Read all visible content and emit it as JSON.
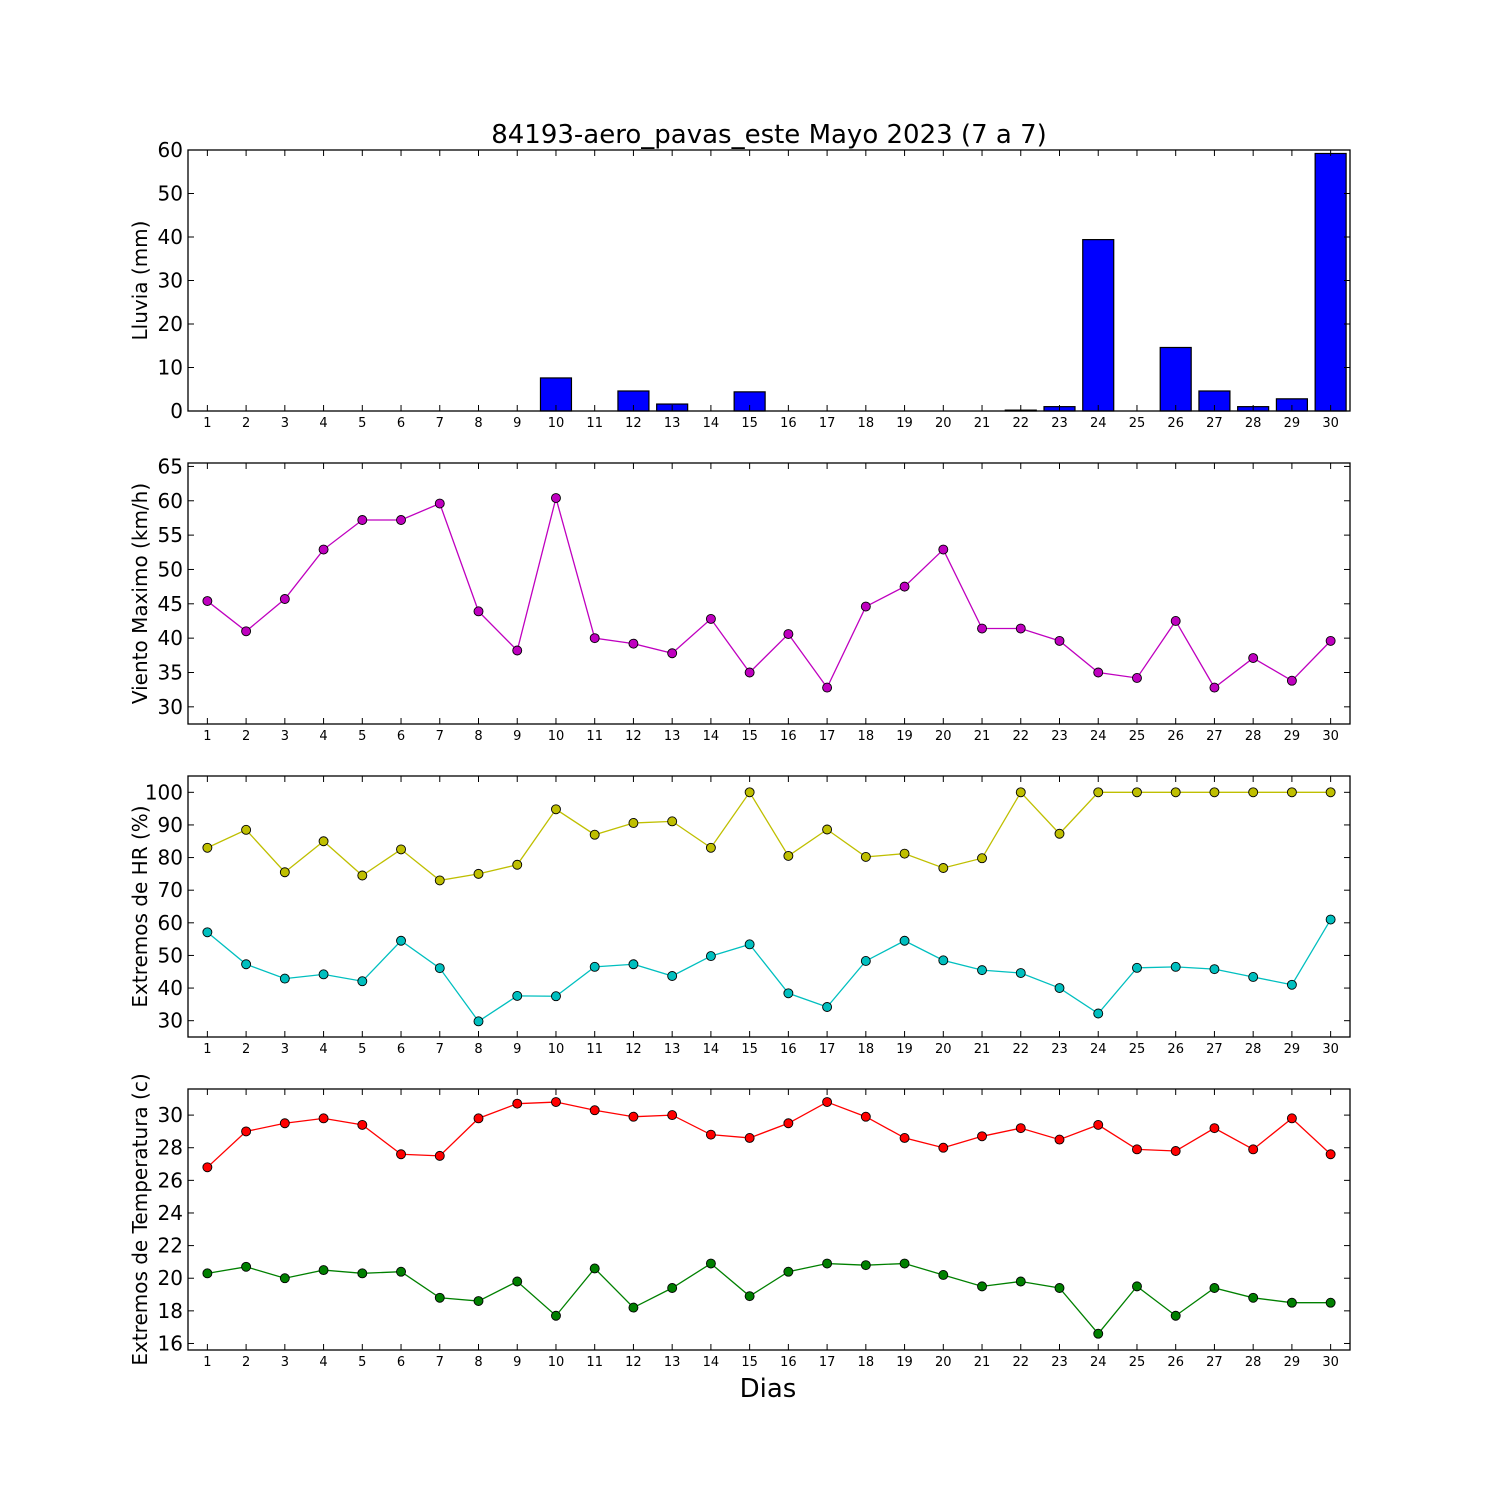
{
  "figure": {
    "title": "84193-aero_pavas_este Mayo 2023  (7 a 7)",
    "xlabel": "Dias"
  },
  "chart_data": [
    {
      "type": "bar",
      "ylabel": "Lluvia (mm)",
      "ylim": [
        0,
        60
      ],
      "yticks": [
        0,
        10,
        20,
        30,
        40,
        50,
        60
      ],
      "x": [
        1,
        2,
        3,
        4,
        5,
        6,
        7,
        8,
        9,
        10,
        11,
        12,
        13,
        14,
        15,
        16,
        17,
        18,
        19,
        20,
        21,
        22,
        23,
        24,
        25,
        26,
        27,
        28,
        29,
        30
      ],
      "series": [
        {
          "color": "#0000ff",
          "values": [
            0,
            0,
            0,
            0,
            0,
            0,
            0,
            0,
            0,
            7.6,
            0,
            4.6,
            1.6,
            0,
            4.4,
            0,
            0,
            0,
            0,
            0,
            0,
            0.2,
            1.0,
            39.4,
            0,
            14.6,
            4.6,
            1.0,
            2.8,
            59.2
          ]
        }
      ],
      "grid": false
    },
    {
      "type": "line",
      "ylabel": "Viento Maximo (km/h)",
      "ylim": [
        27.5,
        65.5
      ],
      "yticks": [
        30,
        35,
        40,
        45,
        50,
        55,
        60,
        65
      ],
      "x": [
        1,
        2,
        3,
        4,
        5,
        6,
        7,
        8,
        9,
        10,
        11,
        12,
        13,
        14,
        15,
        16,
        17,
        18,
        19,
        20,
        21,
        22,
        23,
        24,
        25,
        26,
        27,
        28,
        29,
        30
      ],
      "series": [
        {
          "color": "#bf00bf",
          "values": [
            45.4,
            41.0,
            45.7,
            52.9,
            57.2,
            57.2,
            59.6,
            43.9,
            38.2,
            60.4,
            40.0,
            39.2,
            37.8,
            42.8,
            35.0,
            40.6,
            32.8,
            44.6,
            47.5,
            52.9,
            41.4,
            41.4,
            39.6,
            35.0,
            34.2,
            42.5,
            32.8,
            37.1,
            33.8,
            39.6
          ]
        }
      ],
      "grid": false
    },
    {
      "type": "line",
      "ylabel": "Extremos de HR (%)",
      "ylim": [
        25,
        105
      ],
      "yticks": [
        30,
        40,
        50,
        60,
        70,
        80,
        90,
        100
      ],
      "x": [
        1,
        2,
        3,
        4,
        5,
        6,
        7,
        8,
        9,
        10,
        11,
        12,
        13,
        14,
        15,
        16,
        17,
        18,
        19,
        20,
        21,
        22,
        23,
        24,
        25,
        26,
        27,
        28,
        29,
        30
      ],
      "series": [
        {
          "color": "#bfbf00",
          "values": [
            83,
            88.5,
            75.5,
            85,
            74.5,
            82.5,
            73,
            75,
            77.8,
            94.8,
            87,
            90.6,
            91.1,
            83,
            100,
            80.5,
            88.6,
            80.2,
            81.2,
            76.8,
            79.8,
            100,
            87.3,
            100,
            100,
            100,
            100,
            100,
            100,
            100
          ]
        },
        {
          "color": "#00bfbf",
          "values": [
            57.1,
            47.3,
            42.9,
            44.2,
            42.1,
            54.5,
            46.1,
            29.8,
            37.6,
            37.5,
            46.5,
            47.3,
            43.7,
            49.8,
            53.4,
            38.4,
            34.2,
            48.3,
            54.5,
            48.5,
            45.5,
            44.6,
            40,
            32.2,
            46.2,
            46.5,
            45.8,
            43.4,
            41,
            61
          ]
        }
      ],
      "grid": false
    },
    {
      "type": "line",
      "ylabel": "Extremos de Temperatura (c)",
      "ylim": [
        15.6,
        31.6
      ],
      "yticks": [
        16,
        18,
        20,
        22,
        24,
        26,
        28,
        30
      ],
      "x": [
        1,
        2,
        3,
        4,
        5,
        6,
        7,
        8,
        9,
        10,
        11,
        12,
        13,
        14,
        15,
        16,
        17,
        18,
        19,
        20,
        21,
        22,
        23,
        24,
        25,
        26,
        27,
        28,
        29,
        30
      ],
      "series": [
        {
          "color": "#ff0000",
          "values": [
            26.8,
            29.0,
            29.5,
            29.8,
            29.4,
            27.6,
            27.5,
            29.8,
            30.7,
            30.8,
            30.3,
            29.9,
            30.0,
            28.8,
            28.6,
            29.5,
            30.8,
            29.9,
            28.6,
            28.0,
            28.7,
            29.2,
            28.5,
            29.4,
            27.9,
            27.8,
            29.2,
            27.9,
            29.8,
            27.6
          ]
        },
        {
          "color": "#008000",
          "values": [
            20.3,
            20.7,
            20.0,
            20.5,
            20.3,
            20.4,
            18.8,
            18.6,
            19.8,
            17.7,
            20.6,
            18.2,
            19.4,
            20.9,
            18.9,
            20.4,
            20.9,
            20.8,
            20.9,
            20.2,
            19.5,
            19.8,
            19.4,
            16.6,
            19.5,
            17.7,
            19.4,
            18.8,
            18.5,
            18.5
          ]
        }
      ],
      "grid": false
    }
  ]
}
